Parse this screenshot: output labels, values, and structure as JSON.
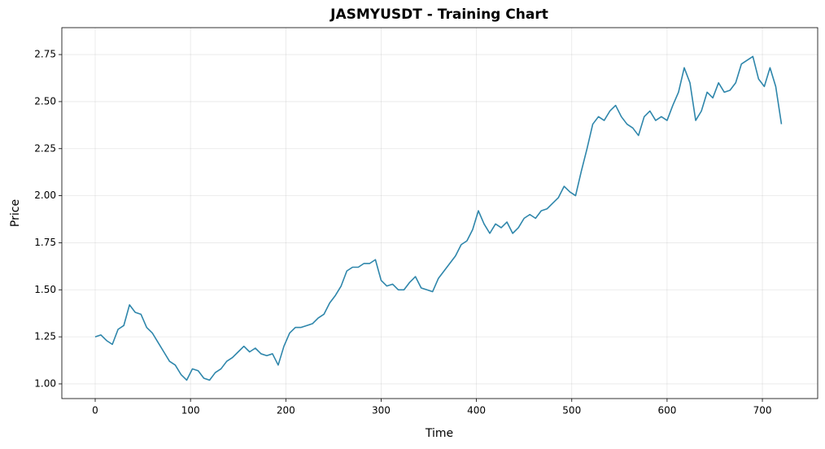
{
  "chart_data": {
    "type": "line",
    "title": "JASMYUSDT - Training Chart",
    "x_label": "Time",
    "y_label": "Price",
    "x": [
      0,
      6,
      12,
      18,
      24,
      30,
      36,
      42,
      48,
      54,
      60,
      66,
      72,
      78,
      84,
      90,
      96,
      102,
      108,
      114,
      120,
      126,
      132,
      138,
      144,
      150,
      156,
      162,
      168,
      174,
      180,
      186,
      192,
      198,
      204,
      210,
      216,
      222,
      228,
      234,
      240,
      246,
      252,
      258,
      264,
      270,
      276,
      282,
      288,
      294,
      300,
      306,
      312,
      318,
      324,
      330,
      336,
      342,
      348,
      354,
      360,
      366,
      372,
      378,
      384,
      390,
      396,
      402,
      408,
      414,
      420,
      426,
      432,
      438,
      444,
      450,
      456,
      462,
      468,
      474,
      480,
      486,
      492,
      498,
      504,
      510,
      516,
      522,
      528,
      534,
      540,
      546,
      552,
      558,
      564,
      570,
      576,
      582,
      588,
      594,
      600,
      606,
      612,
      618,
      624,
      630,
      636,
      642,
      648,
      654,
      660,
      666,
      672,
      678,
      684,
      690,
      696,
      702,
      708,
      714,
      720
    ],
    "series": [
      {
        "name": "Price",
        "color": "#2e86ab",
        "values": [
          1.25,
          1.26,
          1.23,
          1.21,
          1.29,
          1.31,
          1.42,
          1.38,
          1.37,
          1.3,
          1.27,
          1.22,
          1.17,
          1.12,
          1.1,
          1.05,
          1.02,
          1.08,
          1.07,
          1.03,
          1.02,
          1.06,
          1.08,
          1.12,
          1.14,
          1.17,
          1.2,
          1.17,
          1.19,
          1.16,
          1.15,
          1.16,
          1.1,
          1.2,
          1.27,
          1.3,
          1.3,
          1.31,
          1.32,
          1.35,
          1.37,
          1.43,
          1.47,
          1.52,
          1.6,
          1.62,
          1.62,
          1.64,
          1.64,
          1.66,
          1.55,
          1.52,
          1.53,
          1.5,
          1.5,
          1.54,
          1.57,
          1.51,
          1.5,
          1.49,
          1.56,
          1.6,
          1.64,
          1.68,
          1.74,
          1.76,
          1.82,
          1.92,
          1.85,
          1.8,
          1.85,
          1.83,
          1.86,
          1.8,
          1.83,
          1.88,
          1.9,
          1.88,
          1.92,
          1.93,
          1.96,
          1.99,
          2.05,
          2.02,
          2.0,
          2.13,
          2.25,
          2.38,
          2.42,
          2.4,
          2.45,
          2.48,
          2.42,
          2.38,
          2.36,
          2.32,
          2.42,
          2.45,
          2.4,
          2.42,
          2.4,
          2.48,
          2.55,
          2.68,
          2.6,
          2.4,
          2.45,
          2.55,
          2.52,
          2.6,
          2.55,
          2.56,
          2.6,
          2.7,
          2.72,
          2.74,
          2.62,
          2.58,
          2.68,
          2.58,
          2.38
        ]
      }
    ],
    "xlim": [
      -35,
      758
    ],
    "ylim": [
      0.922,
      2.893
    ],
    "xticks": [
      0,
      100,
      200,
      300,
      400,
      500,
      600,
      700
    ],
    "yticks": [
      {
        "value": 1,
        "label": "1.00"
      },
      {
        "value": 1.25,
        "label": "1.25"
      },
      {
        "value": 1.5,
        "label": "1.50"
      },
      {
        "value": 1.75,
        "label": "1.75"
      },
      {
        "value": 2,
        "label": "2.00"
      },
      {
        "value": 2.25,
        "label": "2.25"
      },
      {
        "value": 2.5,
        "label": "2.50"
      },
      {
        "value": 2.75,
        "label": "2.75"
      }
    ],
    "grid": true
  }
}
